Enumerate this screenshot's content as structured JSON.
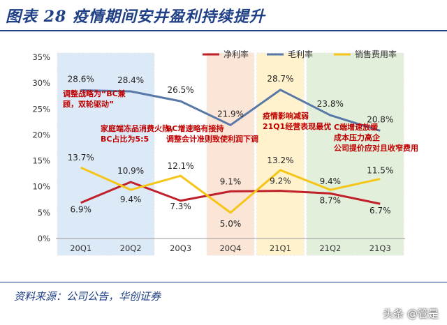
{
  "figure": {
    "title": "图表 28    疫情期间安井盈利持续提升",
    "source": "资料来源：公司公告，华创证券",
    "watermark": "头条 @管是"
  },
  "chart_data": {
    "type": "line",
    "categories": [
      "20Q1",
      "20Q2",
      "20Q3",
      "20Q4",
      "21Q1",
      "21Q2",
      "21Q3"
    ],
    "ylim": [
      0,
      35
    ],
    "yticks": [
      "0%",
      "5%",
      "10%",
      "15%",
      "20%",
      "25%",
      "30%",
      "35%"
    ],
    "legend_position": "top-right",
    "series": [
      {
        "name": "净利率",
        "color": "#c0202a",
        "values": [
          6.9,
          10.9,
          7.3,
          9.1,
          9.2,
          8.7,
          6.7
        ],
        "labels": [
          "6.9%",
          "10.9%",
          "7.3%",
          "9.1%",
          "9.2%",
          "8.7%",
          "6.7%"
        ]
      },
      {
        "name": "毛利率",
        "color": "#5878a8",
        "values": [
          28.6,
          28.4,
          26.5,
          21.9,
          28.7,
          23.8,
          20.8
        ],
        "labels": [
          "28.6%",
          "28.4%",
          "26.5%",
          "21.9%",
          "28.7%",
          "23.8%",
          "20.8%"
        ]
      },
      {
        "name": "销售费用率",
        "color": "#f5c518",
        "values": [
          13.7,
          9.4,
          12.1,
          5.0,
          13.2,
          9.4,
          11.5
        ],
        "labels": [
          "13.7%",
          "9.4%",
          "12.1%",
          "5.0%",
          "13.2%",
          "9.4%",
          "11.5%"
        ]
      }
    ],
    "annotations": [
      {
        "lines": [
          "调整战略为“BC兼",
          "顾，双轮驱动”"
        ]
      },
      {
        "lines": [
          "家庭端冻品消费火热，",
          "BC占比为5:5"
        ]
      },
      {
        "lines": [
          "BC增速略有接持",
          "调整会计准则致使利润下调"
        ]
      },
      {
        "lines": [
          "疫情影响减弱",
          "21Q1经营表现最优"
        ]
      },
      {
        "lines": [
          "C端增速放缓",
          "成本压力高企",
          "公司提价应对且收窄费用"
        ]
      }
    ],
    "period_bands": [
      {
        "from": "20Q1",
        "to": "20Q2",
        "color": "#dce9f7"
      },
      {
        "from": "20Q4",
        "to": "20Q4",
        "color": "#fbe5d6"
      },
      {
        "from": "21Q1",
        "to": "21Q1",
        "color": "#fff2cc"
      },
      {
        "from": "21Q2",
        "to": "21Q3",
        "color": "#e2efda"
      }
    ]
  }
}
